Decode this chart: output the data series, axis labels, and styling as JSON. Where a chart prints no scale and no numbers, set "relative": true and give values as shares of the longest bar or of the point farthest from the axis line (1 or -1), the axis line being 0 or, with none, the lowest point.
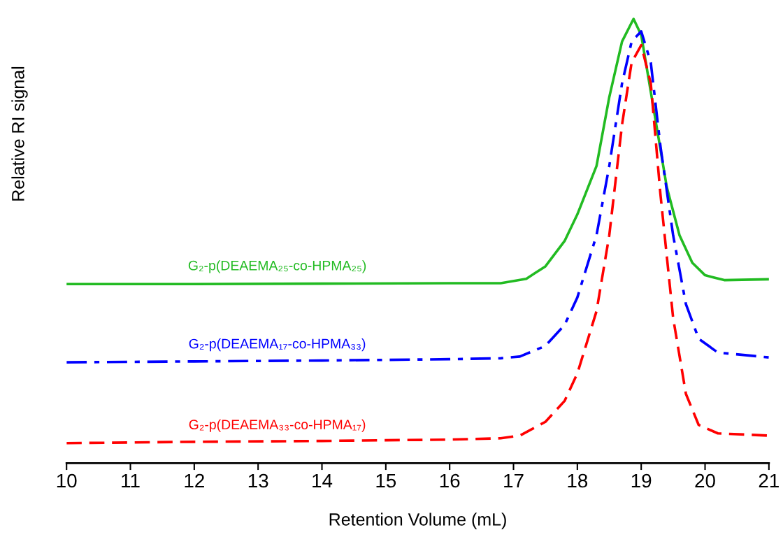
{
  "chart_data": {
    "type": "line",
    "relative": true,
    "xlabel": "Retention Volume (mL)",
    "ylabel": "Relative RI signal",
    "xlim": [
      10,
      21
    ],
    "xticks": [
      10,
      11,
      12,
      13,
      14,
      15,
      16,
      17,
      18,
      19,
      20,
      21
    ],
    "tick_labels": "x",
    "grid": false,
    "legend": false,
    "x": [
      10,
      12,
      14,
      16,
      16.8,
      17.1,
      17.5,
      17.8,
      18.0,
      18.3,
      18.5,
      18.7,
      18.85,
      19.0,
      19.15,
      19.3,
      19.5,
      19.7,
      19.9,
      20.2,
      21
    ],
    "series": [
      {
        "name": "G₂-p(DEAEMA₂₅-co-HPMA₂₅)",
        "color": "#22bb22",
        "line_style": "solid",
        "x": [
          10,
          12,
          14,
          16,
          16.8,
          17.2,
          17.5,
          17.8,
          18.0,
          18.3,
          18.5,
          18.7,
          18.88,
          19.0,
          19.2,
          19.4,
          19.6,
          19.8,
          20.0,
          20.3,
          21
        ],
        "values": [
          0.403,
          0.403,
          0.404,
          0.405,
          0.405,
          0.415,
          0.443,
          0.5,
          0.56,
          0.669,
          0.824,
          0.949,
          1.0,
          0.964,
          0.793,
          0.622,
          0.513,
          0.451,
          0.423,
          0.412,
          0.414
        ]
      },
      {
        "name": "G₂-p(DEAEMA₁₇-co-HPMA₃₃)",
        "color": "#0000ff",
        "line_style": "dashdot",
        "values": [
          0.227,
          0.229,
          0.231,
          0.234,
          0.236,
          0.24,
          0.264,
          0.311,
          0.373,
          0.513,
          0.669,
          0.855,
          0.949,
          0.972,
          0.902,
          0.715,
          0.513,
          0.358,
          0.28,
          0.249,
          0.238
        ]
      },
      {
        "name": "G₂-p(DEAEMA₃₃-co-HPMA₁₇)",
        "color": "#ff0000",
        "line_style": "dashed",
        "values": [
          0.045,
          0.048,
          0.05,
          0.053,
          0.056,
          0.062,
          0.093,
          0.14,
          0.202,
          0.342,
          0.513,
          0.762,
          0.902,
          0.941,
          0.855,
          0.607,
          0.327,
          0.156,
          0.086,
          0.067,
          0.062
        ]
      }
    ]
  }
}
